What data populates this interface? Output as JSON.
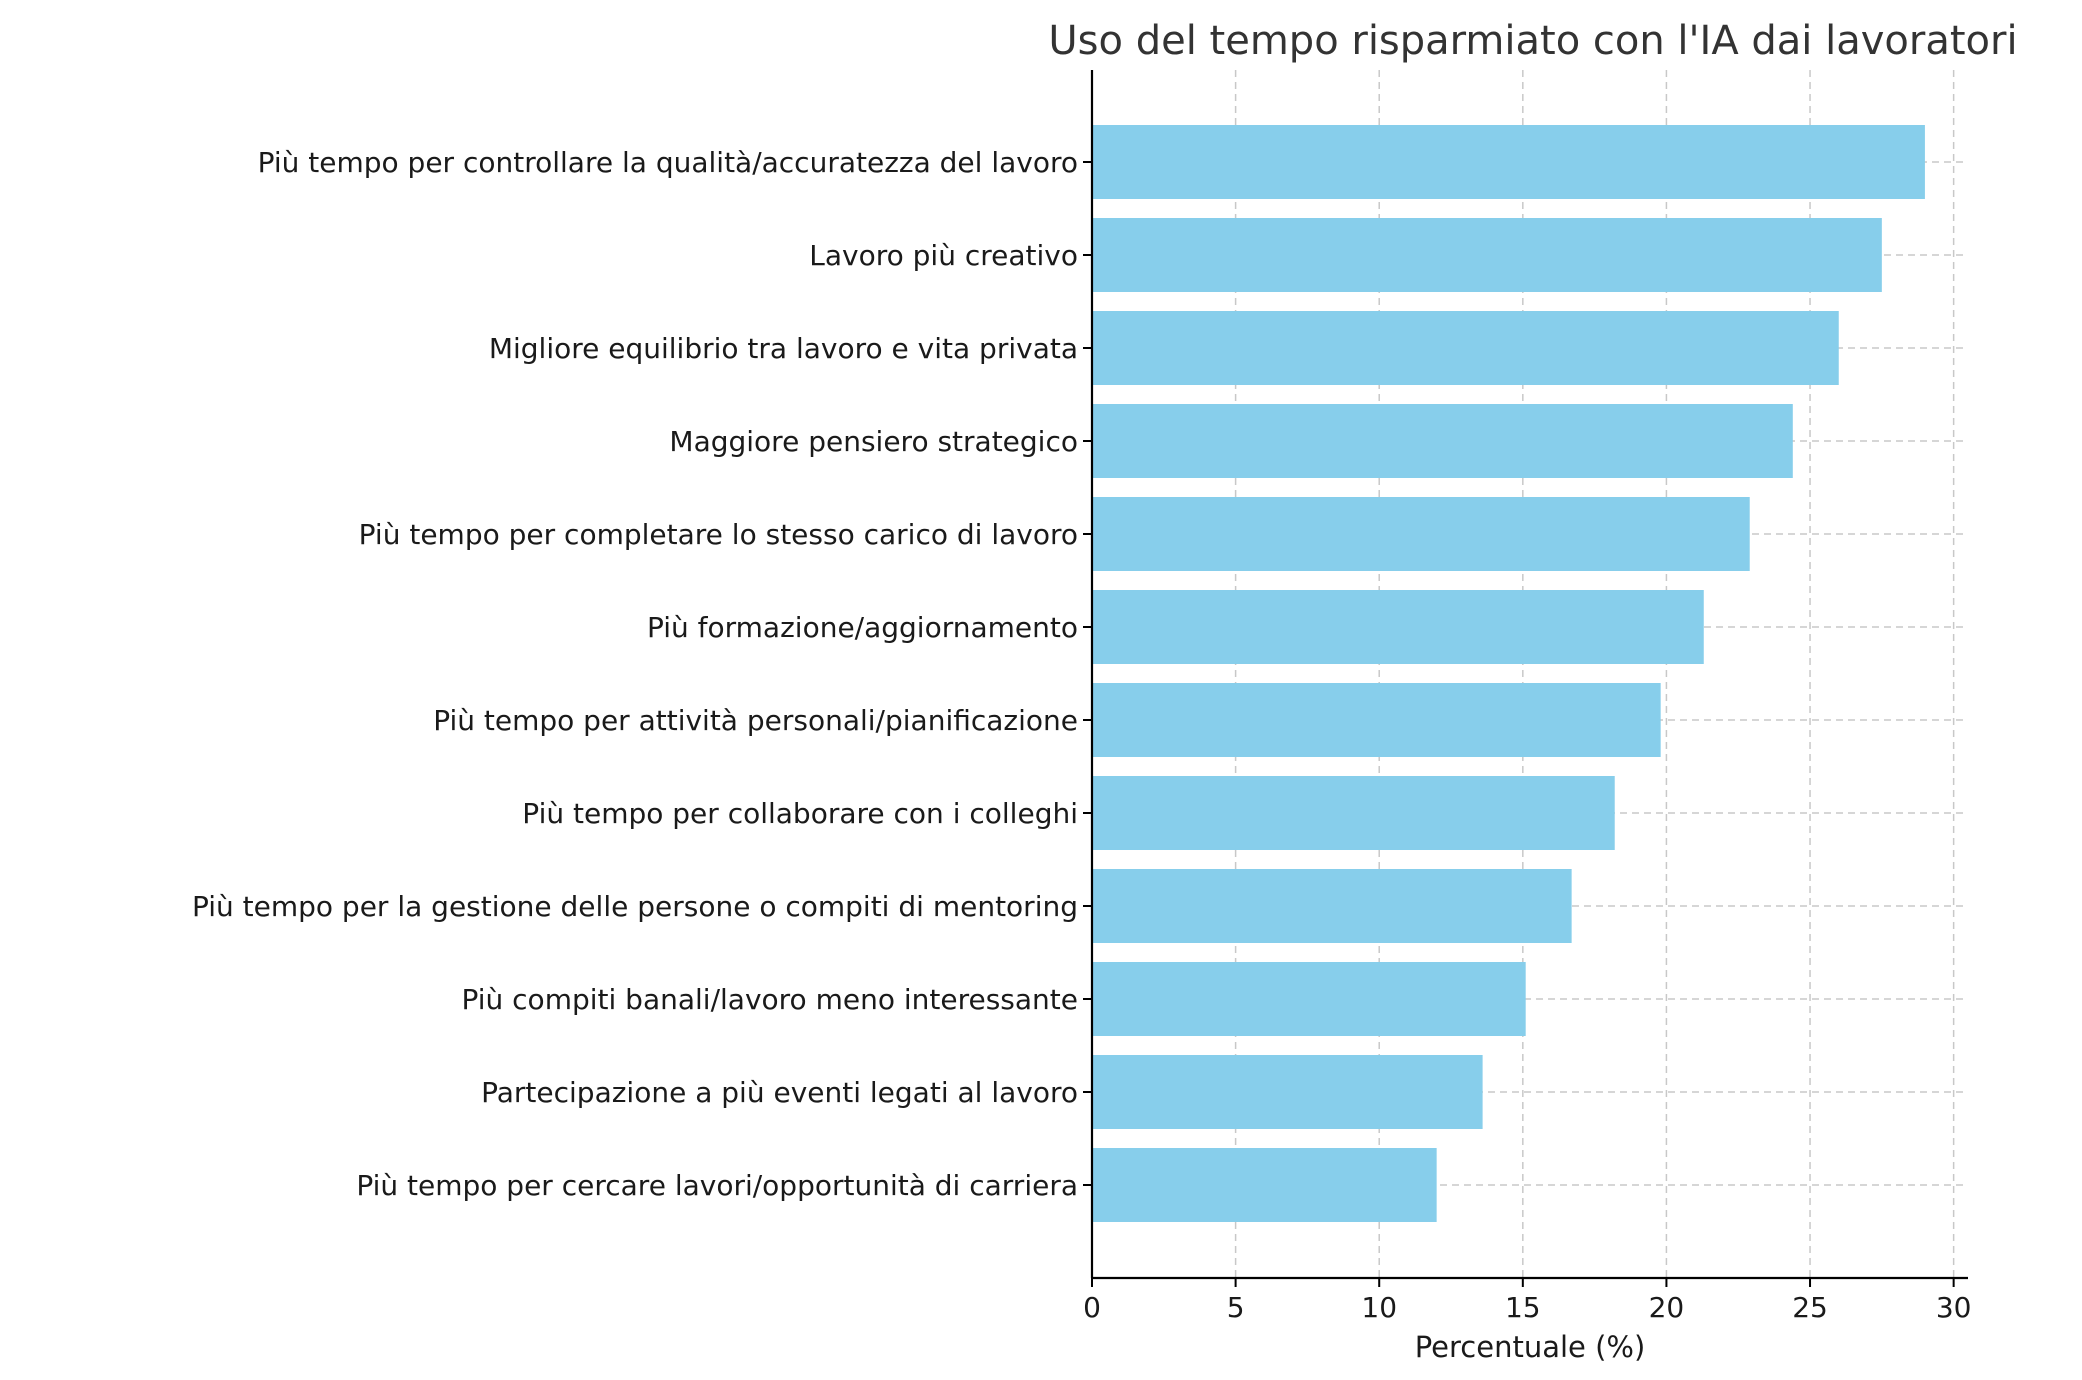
{
  "chart_data": {
    "type": "bar",
    "orientation": "horizontal",
    "title": "Uso del tempo risparmiato con l'IA dai lavoratori",
    "xlabel": "Percentuale (%)",
    "ylabel": "",
    "xlim": [
      0,
      30.5
    ],
    "xticks": [
      0,
      5,
      10,
      15,
      20,
      25,
      30
    ],
    "grid": true,
    "bar_color": "#87CEEB",
    "categories": [
      "Più tempo per controllare la qualità/accuratezza del lavoro",
      "Lavoro più creativo",
      "Migliore equilibrio tra lavoro e vita privata",
      "Maggiore pensiero strategico",
      "Più tempo per completare lo stesso carico di lavoro",
      "Più formazione/aggiornamento",
      "Più tempo per attività personali/pianificazione",
      "Più tempo per collaborare con i colleghi",
      "Più tempo per la gestione delle persone o compiti di mentoring",
      "Più compiti banali/lavoro meno interessante",
      "Partecipazione a più eventi legati al lavoro",
      "Più tempo per cercare lavori/opportunità di carriera"
    ],
    "values": [
      29.0,
      27.5,
      26.0,
      24.4,
      22.9,
      21.3,
      19.8,
      18.2,
      16.7,
      15.1,
      13.6,
      12.0
    ]
  }
}
